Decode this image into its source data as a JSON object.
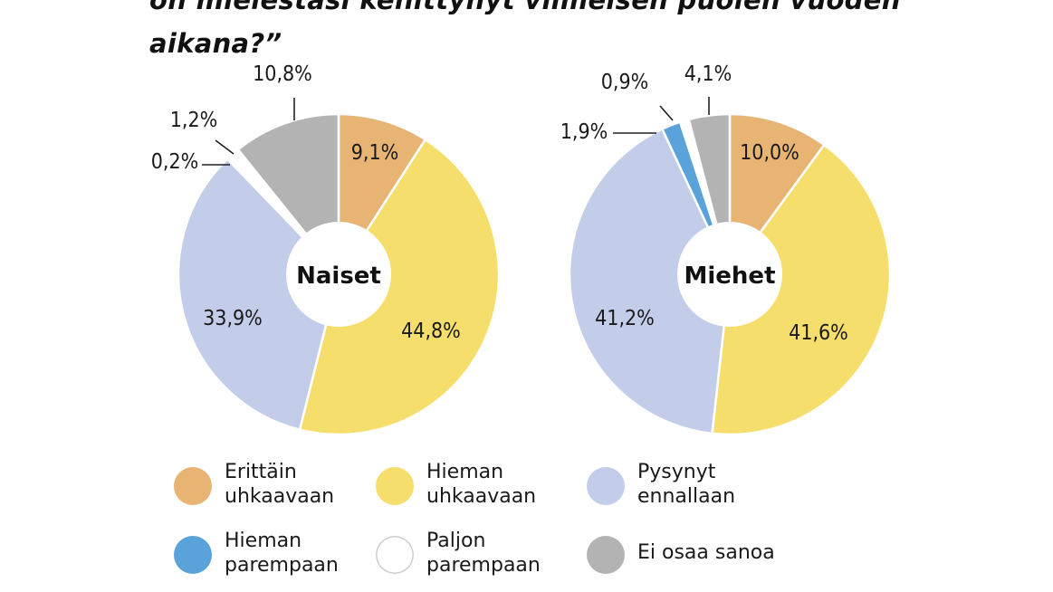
{
  "title": {
    "line2": "on mielestäsi kehittynyt viimeisen puolen vuoden",
    "line3": "aikana?”"
  },
  "chart_data": [
    {
      "type": "pie",
      "center_label": "Naiset",
      "slices": [
        {
          "key": "erittain",
          "value": 9.1,
          "label": "9,1%",
          "color": "#e8b473"
        },
        {
          "key": "hieman_uhk",
          "value": 44.8,
          "label": "44,8%",
          "color": "#f5de6b"
        },
        {
          "key": "pysynyt",
          "value": 33.9,
          "label": "33,9%",
          "color": "#c3cde9"
        },
        {
          "key": "hieman_par",
          "value": 0.2,
          "label": "0,2%",
          "color": "#5aa2da"
        },
        {
          "key": "paljon_par",
          "value": 1.2,
          "label": "1,2%",
          "color": "#ffffff"
        },
        {
          "key": "ei_osaa",
          "value": 10.8,
          "label": "10,8%",
          "color": "#b3b3b3"
        }
      ]
    },
    {
      "type": "pie",
      "center_label": "Miehet",
      "slices": [
        {
          "key": "erittain",
          "value": 10.0,
          "label": "10,0%",
          "color": "#e8b473"
        },
        {
          "key": "hieman_uhk",
          "value": 41.6,
          "label": "41,6%",
          "color": "#f5de6b"
        },
        {
          "key": "pysynyt",
          "value": 41.2,
          "label": "41,2%",
          "color": "#c3cde9"
        },
        {
          "key": "hieman_par",
          "value": 1.9,
          "label": "1,9%",
          "color": "#5aa2da"
        },
        {
          "key": "paljon_par",
          "value": 0.9,
          "label": "0,9%",
          "color": "#ffffff"
        },
        {
          "key": "ei_osaa",
          "value": 4.1,
          "label": "4,1%",
          "color": "#b3b3b3"
        }
      ]
    }
  ],
  "legend": [
    {
      "line1": "Erittäin",
      "line2": "uhkaavaan",
      "color": "#e8b473"
    },
    {
      "line1": "Hieman",
      "line2": "uhkaavaan",
      "color": "#f5de6b"
    },
    {
      "line1": "Pysynyt",
      "line2": "ennallaan",
      "color": "#c3cde9"
    },
    {
      "line1": "Hieman",
      "line2": "parempaan",
      "color": "#5aa2da"
    },
    {
      "line1": "Paljon",
      "line2": "parempaan",
      "color": "#ffffff"
    },
    {
      "line1": "Ei osaa sanoa",
      "line2": "",
      "color": "#b3b3b3"
    }
  ]
}
